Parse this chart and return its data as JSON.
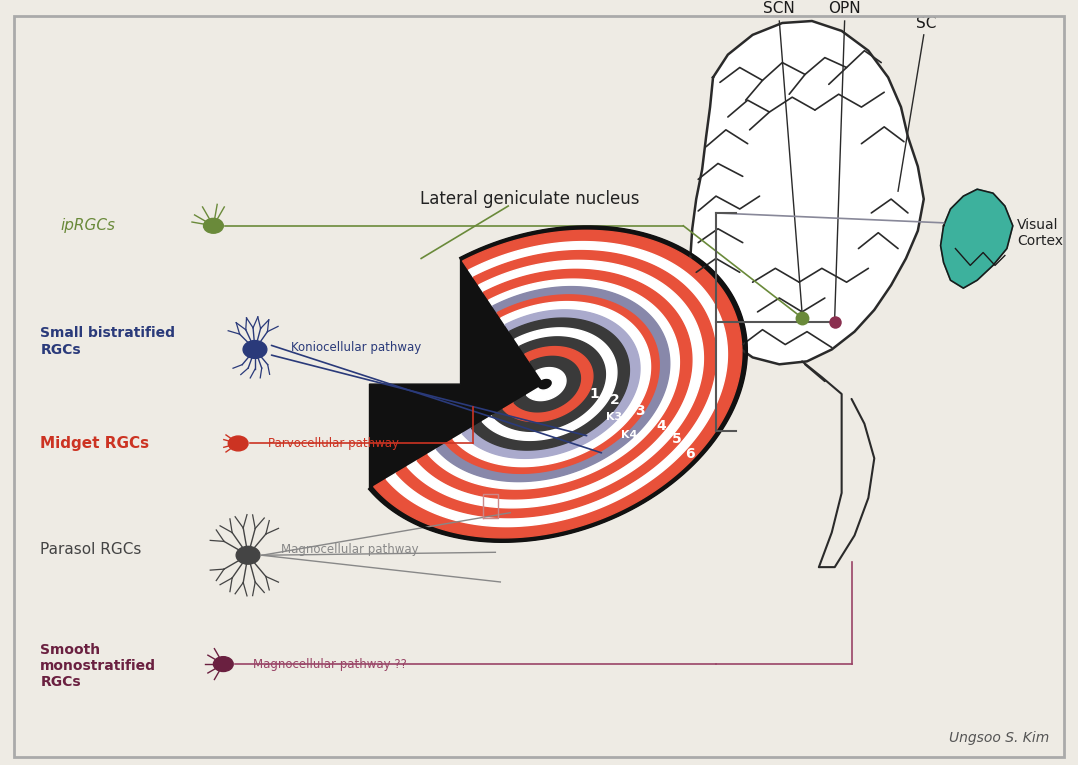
{
  "bg_color": "#eeebe4",
  "border_color": "#aaaaaa",
  "colors": {
    "red_layer": "#e8513a",
    "white_sep": "#ffffff",
    "dark_gray": "#3a3a3a",
    "mid_gray": "#8888aa",
    "light_gray": "#aaaacc",
    "black_outline": "#111111",
    "brain_line": "#2a2a2a",
    "visual_cortex_fill": "#2aab96",
    "iprgc_color": "#6a8a3a",
    "sb_color": "#2a3a7a",
    "midget_color": "#cc3322",
    "parasol_color": "#444444",
    "smooth_color": "#6a2040",
    "smooth_line": "#994466",
    "magno_line": "#888888",
    "bracket_color": "#555555",
    "signature": "#555555"
  },
  "labels": {
    "lgn_title": "Lateral geniculate nucleus",
    "iprgc": "ipRGCs",
    "sb": "Small bistratified\nRGCs",
    "midget": "Midget RGCs",
    "parasol": "Parasol RGCs",
    "smooth": "Smooth\nmonostratified\nRGCs",
    "konio": "Koniocellular pathway",
    "parvo": "Parvocellular pathway",
    "magno": "Magnocellular pathway",
    "smooth_path": "Magnocellular pathway ??",
    "SCN": "SCN",
    "OPN": "OPN",
    "SC": "SC",
    "VC": "Visual\nCortex",
    "sig": "Ungsoo S. Kim"
  }
}
